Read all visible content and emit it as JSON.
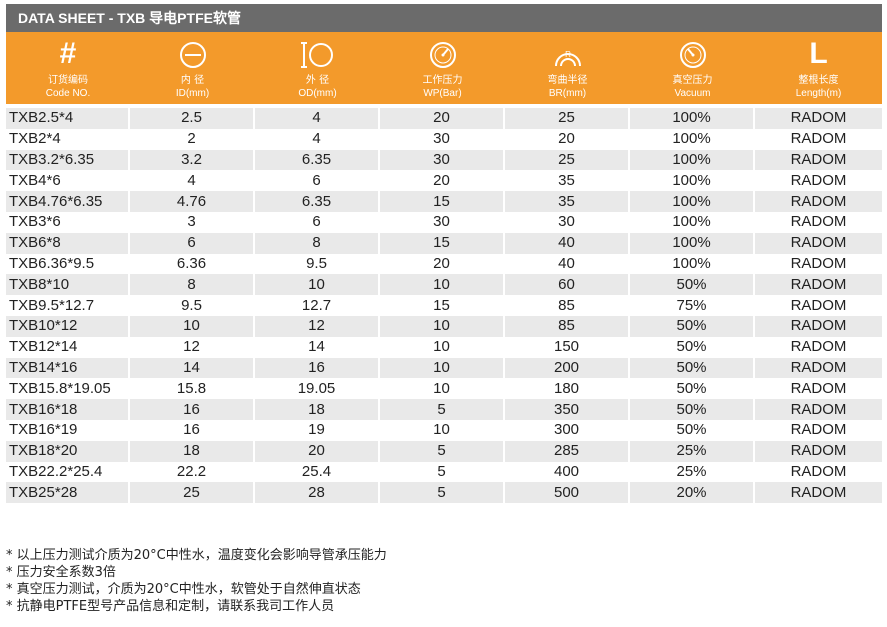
{
  "title": "DATA SHEET - TXB 导电PTFE软管",
  "columns": [
    {
      "icon_text": "#",
      "icon": "hash-icon",
      "label_cn": "订货编码",
      "label_en": "Code NO."
    },
    {
      "icon": "inner-diameter-icon",
      "label_cn": "内 径",
      "label_en": "ID(mm)"
    },
    {
      "icon": "outer-diameter-icon",
      "label_cn": "外 径",
      "label_en": "OD(mm)"
    },
    {
      "icon": "pressure-gauge-icon",
      "label_cn": "工作压力",
      "label_en": "WP(Bar)"
    },
    {
      "icon": "bend-radius-icon",
      "label_cn": "弯曲半径",
      "label_en": "BR(mm)"
    },
    {
      "icon": "vacuum-gauge-icon",
      "label_cn": "真空压力",
      "label_en": "Vacuum"
    },
    {
      "icon_text": "L",
      "icon": "length-icon",
      "label_cn": "整根长度",
      "label_en": "Length(m)"
    }
  ],
  "rows": [
    [
      "TXB2.5*4",
      "2.5",
      "4",
      "20",
      "25",
      "100%",
      "RADOM"
    ],
    [
      "TXB2*4",
      "2",
      "4",
      "30",
      "20",
      "100%",
      "RADOM"
    ],
    [
      "TXB3.2*6.35",
      "3.2",
      "6.35",
      "30",
      "25",
      "100%",
      "RADOM"
    ],
    [
      "TXB4*6",
      "4",
      "6",
      "20",
      "35",
      "100%",
      "RADOM"
    ],
    [
      "TXB4.76*6.35",
      "4.76",
      "6.35",
      "15",
      "35",
      "100%",
      "RADOM"
    ],
    [
      "TXB3*6",
      "3",
      "6",
      "30",
      "30",
      "100%",
      "RADOM"
    ],
    [
      "TXB6*8",
      "6",
      "8",
      "15",
      "40",
      "100%",
      "RADOM"
    ],
    [
      "TXB6.36*9.5",
      "6.36",
      "9.5",
      "20",
      "40",
      "100%",
      "RADOM"
    ],
    [
      "TXB8*10",
      "8",
      "10",
      "10",
      "60",
      "50%",
      "RADOM"
    ],
    [
      "TXB9.5*12.7",
      "9.5",
      "12.7",
      "15",
      "85",
      "75%",
      "RADOM"
    ],
    [
      "TXB10*12",
      "10",
      "12",
      "10",
      "85",
      "50%",
      "RADOM"
    ],
    [
      "TXB12*14",
      "12",
      "14",
      "10",
      "150",
      "50%",
      "RADOM"
    ],
    [
      "TXB14*16",
      "14",
      "16",
      "10",
      "200",
      "50%",
      "RADOM"
    ],
    [
      "TXB15.8*19.05",
      "15.8",
      "19.05",
      "10",
      "180",
      "50%",
      "RADOM"
    ],
    [
      "TXB16*18",
      "16",
      "18",
      "5",
      "350",
      "50%",
      "RADOM"
    ],
    [
      "TXB16*19",
      "16",
      "19",
      "10",
      "300",
      "50%",
      "RADOM"
    ],
    [
      "TXB18*20",
      "18",
      "20",
      "5",
      "285",
      "25%",
      "RADOM"
    ],
    [
      "TXB22.2*25.4",
      "22.2",
      "25.4",
      "5",
      "400",
      "25%",
      "RADOM"
    ],
    [
      "TXB25*28",
      "25",
      "28",
      "5",
      "500",
      "20%",
      "RADOM"
    ]
  ],
  "notes": [
    "* 以上压力测试介质为20°C中性水，温度变化会影响导管承压能力",
    "* 压力安全系数3倍",
    "* 真空压力测试，介质为20°C中性水，软管处于自然伸直状态",
    "* 抗静电PTFE型号产品信息和定制，请联系我司工作人员"
  ],
  "colors": {
    "header_bg": "#f39a2b",
    "title_bg": "#6b6b6b",
    "row_alt": "#e9e9e9"
  }
}
